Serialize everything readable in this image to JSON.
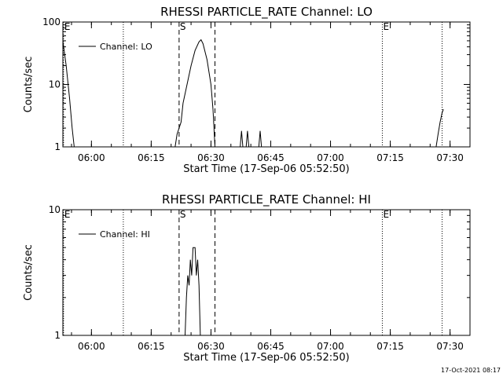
{
  "footer": {
    "timestamp": "17-Oct-2021 08:17"
  },
  "chart_data": [
    {
      "type": "line",
      "title": "RHESSI PARTICLE_RATE Channel: LO",
      "xlabel": "Start Time (17-Sep-06 05:52:50)",
      "ylabel": "Counts/sec",
      "y_scale": "log",
      "ylim": [
        1,
        100
      ],
      "y_ticks": [
        "1",
        "10",
        "100"
      ],
      "x_ticks": [
        "06:00",
        "06:15",
        "06:30",
        "06:45",
        "07:00",
        "07:15",
        "07:30"
      ],
      "legend": {
        "label": "Channel: LO",
        "placement": "top-left"
      },
      "markers": [
        {
          "label": "E",
          "time": "05:53",
          "style": "dotted"
        },
        {
          "label": "",
          "time": "06:08",
          "style": "dotted"
        },
        {
          "label": "S",
          "time": "06:22",
          "style": "dashed"
        },
        {
          "label": "",
          "time": "06:31",
          "style": "dashed"
        },
        {
          "label": "E",
          "time": "07:13",
          "style": "dotted"
        },
        {
          "label": "",
          "time": "07:28",
          "style": "dotted"
        }
      ],
      "series": [
        {
          "name": "Channel: LO",
          "segments": [
            [
              [
                "05:52:50",
                50
              ],
              [
                "05:53:40",
                20
              ],
              [
                "05:54:30",
                6
              ],
              [
                "05:55:10",
                2
              ],
              [
                "05:55:40",
                1
              ]
            ],
            [
              [
                "06:21:00",
                1
              ],
              [
                "06:21:30",
                1.6
              ],
              [
                "06:22:30",
                2.5
              ],
              [
                "06:23:00",
                5
              ],
              [
                "06:24:00",
                10
              ],
              [
                "06:25:00",
                20
              ],
              [
                "06:26:00",
                35
              ],
              [
                "06:27:00",
                48
              ],
              [
                "06:27:30",
                52
              ],
              [
                "06:28:00",
                45
              ],
              [
                "06:29:00",
                25
              ],
              [
                "06:30:00",
                10
              ],
              [
                "06:30:30",
                4
              ],
              [
                "06:31:00",
                1
              ]
            ],
            [
              [
                "06:37:20",
                1
              ],
              [
                "06:37:40",
                1.8
              ],
              [
                "06:38:00",
                1
              ]
            ],
            [
              [
                "06:38:50",
                1
              ],
              [
                "06:39:10",
                1.8
              ],
              [
                "06:39:30",
                1
              ]
            ],
            [
              [
                "06:42:00",
                1
              ],
              [
                "06:42:20",
                1.8
              ],
              [
                "06:42:40",
                1
              ]
            ],
            [
              [
                "07:26:30",
                1
              ],
              [
                "07:27:00",
                1.6
              ],
              [
                "07:27:30",
                2.5
              ],
              [
                "07:28:00",
                3.5
              ],
              [
                "07:28:20",
                4
              ]
            ]
          ]
        }
      ]
    },
    {
      "type": "line",
      "title": "RHESSI PARTICLE_RATE Channel: HI",
      "xlabel": "Start Time (17-Sep-06 05:52:50)",
      "ylabel": "Counts/sec",
      "y_scale": "log",
      "ylim": [
        1,
        10
      ],
      "y_ticks": [
        "1",
        "10"
      ],
      "x_ticks": [
        "06:00",
        "06:15",
        "06:30",
        "06:45",
        "07:00",
        "07:15",
        "07:30"
      ],
      "legend": {
        "label": "Channel: HI",
        "placement": "top-left"
      },
      "markers": [
        {
          "label": "E",
          "time": "05:53",
          "style": "dotted"
        },
        {
          "label": "",
          "time": "06:08",
          "style": "dotted"
        },
        {
          "label": "S",
          "time": "06:22",
          "style": "dashed"
        },
        {
          "label": "",
          "time": "06:31",
          "style": "dashed"
        },
        {
          "label": "E",
          "time": "07:13",
          "style": "dotted"
        },
        {
          "label": "",
          "time": "07:28",
          "style": "dotted"
        }
      ],
      "series": [
        {
          "name": "Channel: HI",
          "segments": [
            [
              [
                "06:23:30",
                1
              ],
              [
                "06:23:50",
                2
              ],
              [
                "06:24:10",
                3
              ],
              [
                "06:24:30",
                2.5
              ],
              [
                "06:24:50",
                4
              ],
              [
                "06:25:10",
                3
              ],
              [
                "06:25:30",
                5
              ],
              [
                "06:26:00",
                5
              ],
              [
                "06:26:20",
                3
              ],
              [
                "06:26:40",
                4
              ],
              [
                "06:27:00",
                2.5
              ],
              [
                "06:27:20",
                1
              ]
            ]
          ]
        }
      ]
    }
  ]
}
